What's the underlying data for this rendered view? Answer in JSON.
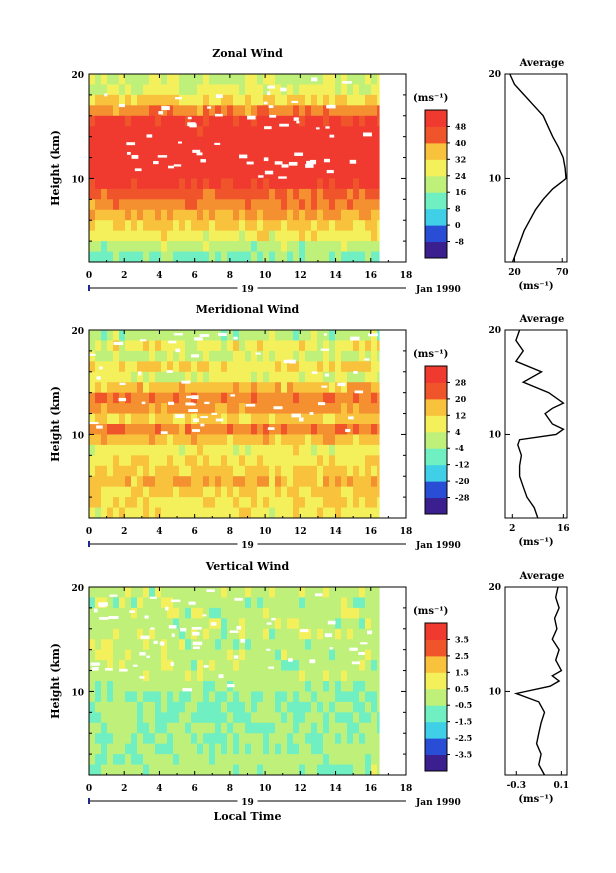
{
  "chart_data": [
    {
      "type": "heatmap",
      "title": "Zonal Wind",
      "ylabel": "Height (km)",
      "xlabel": "",
      "ylim": [
        2,
        20
      ],
      "xlim": [
        0,
        18
      ],
      "x_ticks": [
        "0",
        "2",
        "4",
        "6",
        "8",
        "10",
        "12",
        "14",
        "16",
        "18"
      ],
      "y_ticks": [
        "10",
        "20"
      ],
      "date_label": "19",
      "date_suffix": "Jan 1990",
      "unit": "(ms⁻¹)",
      "colorbar": {
        "levels": [
          -8,
          0,
          8,
          16,
          24,
          32,
          40,
          48
        ],
        "tick_labels": [
          "-8",
          "0",
          "8",
          "16",
          "24",
          "32",
          "40",
          "48"
        ],
        "min": -12,
        "max": 52
      },
      "field_layers": [
        {
          "h": 19.5,
          "v": 22
        },
        {
          "h": 18.5,
          "v": 24
        },
        {
          "h": 17.5,
          "v": 30
        },
        {
          "h": 16.5,
          "v": 38
        },
        {
          "h": 15.5,
          "v": 48
        },
        {
          "h": 14.5,
          "v": 50
        },
        {
          "h": 13.5,
          "v": 52
        },
        {
          "h": 12.5,
          "v": 52
        },
        {
          "h": 11.5,
          "v": 52
        },
        {
          "h": 10.5,
          "v": 52
        },
        {
          "h": 9.5,
          "v": 48
        },
        {
          "h": 8.5,
          "v": 42
        },
        {
          "h": 7.5,
          "v": 38
        },
        {
          "h": 6.5,
          "v": 34
        },
        {
          "h": 5.5,
          "v": 30
        },
        {
          "h": 4.5,
          "v": 26
        },
        {
          "h": 3.5,
          "v": 20
        },
        {
          "h": 2.5,
          "v": 16
        }
      ],
      "data_end_time": 16.5,
      "average_profile": {
        "title": "Average",
        "x_ticks": [
          "20",
          "70"
        ],
        "xlim": [
          10,
          75
        ],
        "unit_label": "(ms⁻¹)",
        "y_ticks": [
          "10",
          "20"
        ],
        "points": [
          [
            18,
            2
          ],
          [
            22,
            3
          ],
          [
            26,
            4
          ],
          [
            30,
            5
          ],
          [
            36,
            6
          ],
          [
            42,
            7
          ],
          [
            50,
            8
          ],
          [
            60,
            9
          ],
          [
            70,
            9.7
          ],
          [
            74,
            10
          ],
          [
            73,
            11
          ],
          [
            71,
            12
          ],
          [
            66,
            13
          ],
          [
            60,
            14
          ],
          [
            55,
            15
          ],
          [
            50,
            16
          ],
          [
            40,
            17
          ],
          [
            30,
            18
          ],
          [
            20,
            19
          ],
          [
            15,
            20
          ]
        ]
      }
    },
    {
      "type": "heatmap",
      "title": "Meridional Wind",
      "ylabel": "Height (km)",
      "xlabel": "",
      "ylim": [
        2,
        20
      ],
      "xlim": [
        0,
        18
      ],
      "x_ticks": [
        "0",
        "2",
        "4",
        "6",
        "8",
        "10",
        "12",
        "14",
        "16",
        "18"
      ],
      "y_ticks": [
        "10",
        "20"
      ],
      "date_label": "19",
      "date_suffix": "Jan 1990",
      "unit": "(ms⁻¹)",
      "colorbar": {
        "levels": [
          -28,
          -20,
          -12,
          -4,
          4,
          12,
          20,
          28
        ],
        "tick_labels": [
          "-28",
          "-20",
          "-12",
          "-4",
          "4",
          "12",
          "20",
          "28"
        ],
        "min": -32,
        "max": 32
      },
      "field_layers": [
        {
          "h": 19.5,
          "v": 0
        },
        {
          "h": 18.5,
          "v": 6
        },
        {
          "h": 17.5,
          "v": 2
        },
        {
          "h": 16.5,
          "v": 8
        },
        {
          "h": 15.5,
          "v": 4
        },
        {
          "h": 14.5,
          "v": 12
        },
        {
          "h": 13.5,
          "v": 20
        },
        {
          "h": 12.5,
          "v": 16
        },
        {
          "h": 11.5,
          "v": 10
        },
        {
          "h": 10.5,
          "v": 18
        },
        {
          "h": 9.5,
          "v": 12
        },
        {
          "h": 8.5,
          "v": 6
        },
        {
          "h": 7.5,
          "v": 8
        },
        {
          "h": 6.5,
          "v": 10
        },
        {
          "h": 5.5,
          "v": 12
        },
        {
          "h": 4.5,
          "v": 10
        },
        {
          "h": 3.5,
          "v": 8
        },
        {
          "h": 2.5,
          "v": 6
        }
      ],
      "data_end_time": 16.5,
      "average_profile": {
        "title": "Average",
        "x_ticks": [
          "2",
          "16"
        ],
        "xlim": [
          0,
          17
        ],
        "unit_label": "(ms⁻¹)",
        "y_ticks": [
          "10",
          "20"
        ],
        "points": [
          [
            9,
            2
          ],
          [
            8,
            3
          ],
          [
            6,
            4
          ],
          [
            5,
            5
          ],
          [
            4,
            6
          ],
          [
            4,
            7
          ],
          [
            4.5,
            8
          ],
          [
            3.5,
            9
          ],
          [
            4,
            9.5
          ],
          [
            14,
            10
          ],
          [
            16,
            10.5
          ],
          [
            13,
            11
          ],
          [
            11,
            12
          ],
          [
            13,
            12.5
          ],
          [
            16,
            13
          ],
          [
            12,
            14
          ],
          [
            5,
            15
          ],
          [
            10,
            16
          ],
          [
            3,
            17
          ],
          [
            5,
            18
          ],
          [
            3,
            19
          ],
          [
            4,
            20
          ]
        ]
      }
    },
    {
      "type": "heatmap",
      "title": "Vertical Wind",
      "ylabel": "Height (km)",
      "xlabel": "Local Time",
      "ylim": [
        2,
        20
      ],
      "xlim": [
        0,
        18
      ],
      "x_ticks": [
        "0",
        "2",
        "4",
        "6",
        "8",
        "10",
        "12",
        "14",
        "16",
        "18"
      ],
      "y_ticks": [
        "10",
        "20"
      ],
      "date_label": "19",
      "date_suffix": "Jan 1990",
      "unit": "(ms⁻¹)",
      "colorbar": {
        "levels": [
          -3.5,
          -2.5,
          -1.5,
          -0.5,
          0.5,
          1.5,
          2.5,
          3.5
        ],
        "tick_labels": [
          "-3.5",
          "-2.5",
          "-1.5",
          "-0.5",
          "0.5",
          "1.5",
          "2.5",
          "3.5"
        ],
        "min": -4.0,
        "max": 4.0
      },
      "field_layers": [
        {
          "h": 19.5,
          "v": 0.1
        },
        {
          "h": 18.5,
          "v": 0.0
        },
        {
          "h": 17.5,
          "v": 0.1
        },
        {
          "h": 16.5,
          "v": 0.0
        },
        {
          "h": 15.5,
          "v": 0.1
        },
        {
          "h": 14.5,
          "v": 0.0
        },
        {
          "h": 13.5,
          "v": 0.1
        },
        {
          "h": 12.5,
          "v": 0.0
        },
        {
          "h": 11.5,
          "v": 0.1
        },
        {
          "h": 10.5,
          "v": -0.1
        },
        {
          "h": 9.5,
          "v": -0.4
        },
        {
          "h": 8.5,
          "v": -0.3
        },
        {
          "h": 7.5,
          "v": -0.3
        },
        {
          "h": 6.5,
          "v": -0.2
        },
        {
          "h": 5.5,
          "v": -0.2
        },
        {
          "h": 4.5,
          "v": -0.2
        },
        {
          "h": 3.5,
          "v": -0.1
        },
        {
          "h": 2.5,
          "v": -0.1
        }
      ],
      "data_end_time": 16.5,
      "average_profile": {
        "title": "Average",
        "x_ticks": [
          "-0.3",
          "0.1"
        ],
        "xlim": [
          -0.4,
          0.15
        ],
        "unit_label": "(ms⁻¹)",
        "y_ticks": [
          "10",
          "20"
        ],
        "points": [
          [
            -0.05,
            2
          ],
          [
            -0.1,
            3
          ],
          [
            -0.08,
            4
          ],
          [
            -0.12,
            5
          ],
          [
            -0.1,
            6
          ],
          [
            -0.08,
            7
          ],
          [
            -0.05,
            8
          ],
          [
            -0.1,
            9
          ],
          [
            -0.3,
            9.8
          ],
          [
            0.0,
            10.5
          ],
          [
            0.08,
            11
          ],
          [
            0.02,
            11.5
          ],
          [
            0.1,
            12
          ],
          [
            0.05,
            13
          ],
          [
            0.08,
            14
          ],
          [
            0.02,
            15
          ],
          [
            0.06,
            16
          ],
          [
            0.04,
            17
          ],
          [
            0.08,
            18
          ],
          [
            0.05,
            19
          ],
          [
            0.07,
            20
          ]
        ]
      }
    }
  ],
  "colors": {
    "scale": [
      "#3b1f8f",
      "#2a4dd6",
      "#2e8ff0",
      "#3fd0e8",
      "#70efc2",
      "#bff07a",
      "#f3f05c",
      "#f8c23c",
      "#f59031",
      "#f0542b",
      "#f03a30"
    ]
  }
}
